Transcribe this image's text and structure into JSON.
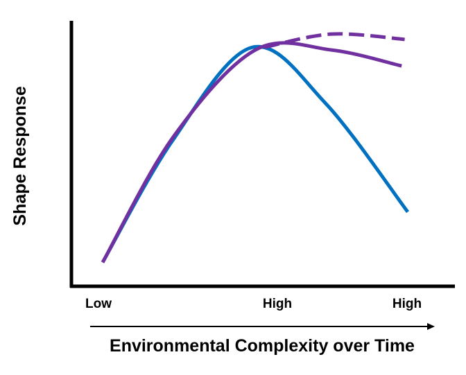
{
  "chart_data": {
    "type": "line",
    "title": "",
    "xlabel": "Environmental Complexity over Time",
    "ylabel": "Shape Response",
    "x_tick_labels": [
      {
        "value": 0,
        "label": "Low"
      },
      {
        "value": 0.5,
        "label": "High"
      },
      {
        "value": 1,
        "label": "High"
      }
    ],
    "xlim": [
      0,
      1
    ],
    "ylim": [
      0,
      1
    ],
    "grid": false,
    "legend": "none",
    "series": [
      {
        "name": "blue",
        "color": "#0070c0",
        "dashed": false,
        "x": [
          0,
          0.23,
          0.49,
          0.73,
          1.0
        ],
        "y": [
          0.09,
          0.55,
          0.9,
          0.69,
          0.28
        ]
      },
      {
        "name": "purple",
        "color": "#7030a0",
        "dashed": false,
        "x": [
          0,
          0.23,
          0.5,
          0.75,
          0.98
        ],
        "y": [
          0.09,
          0.56,
          0.89,
          0.89,
          0.83
        ]
      },
      {
        "name": "purple-dashed",
        "color": "#7030a0",
        "dashed": true,
        "x": [
          0.53,
          0.75,
          0.99
        ],
        "y": [
          0.9,
          0.95,
          0.93
        ]
      }
    ]
  }
}
